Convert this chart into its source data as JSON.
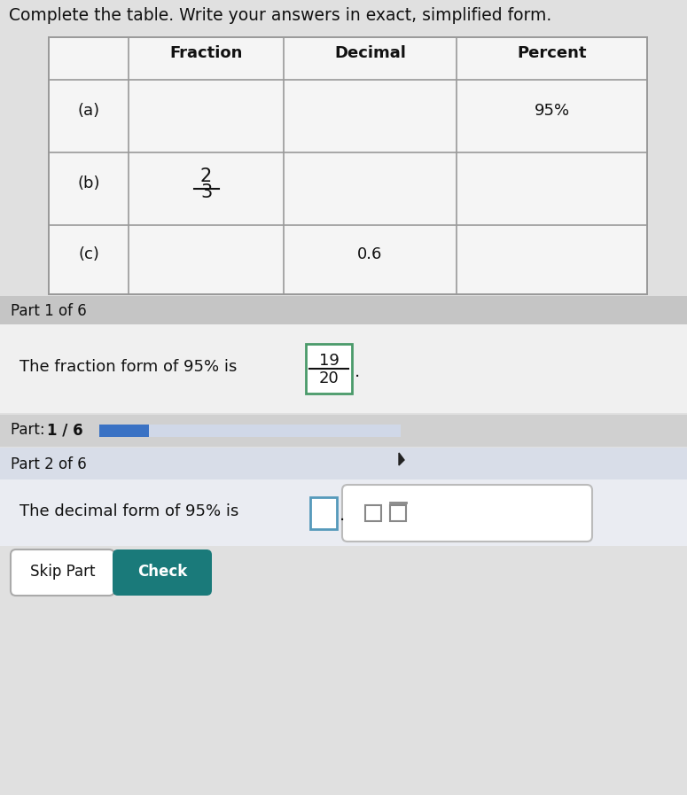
{
  "title": "Complete the table. Write your answers in exact, simplified form.",
  "title_fontsize": 13.5,
  "page_bg": "#e0e0e0",
  "white": "#ffffff",
  "table_header_bg": "#f2f2f2",
  "table_row_bg": "#f8f8f8",
  "header_row": [
    "",
    "Fraction",
    "Decimal",
    "Percent"
  ],
  "part1_label": "Part 1 of 6",
  "part1_text": "The fraction form of 95% is",
  "part1_fraction_num": "19",
  "part1_fraction_den": "20",
  "fraction_box_color": "#4a9a6a",
  "progress_bar_color": "#3a72c4",
  "progress_track_color": "#d0d8e8",
  "part2_label": "Part 2 of 6",
  "part2_text": "The decimal form of 95% is",
  "skip_btn": "Skip Part",
  "check_btn": "Check",
  "check_btn_color": "#1a7a7a",
  "section_bg_dark": "#c8c8c8",
  "section_bg_light": "#e8e8e8",
  "part2_area_bg": "#dde4ee",
  "part2_inner_bg": "#eef0f5"
}
